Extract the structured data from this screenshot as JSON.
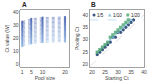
{
  "chart_data": [
    {
      "type": "line",
      "title": "A",
      "xlabel": "Pool size",
      "ylabel": "Ct value (W)",
      "x": [
        1,
        5,
        10,
        20
      ],
      "xlim": [
        0,
        22
      ],
      "xticks": [
        1,
        5,
        10,
        20
      ],
      "ylim": [
        -2,
        42
      ],
      "yticks": [
        0,
        10,
        20,
        30,
        40
      ],
      "grid": false,
      "marker": "circle",
      "line_style": "dotted",
      "series": [
        {
          "color": "#8cb2e0",
          "values": [
            14,
            16.2,
            17.1,
            17.6
          ]
        },
        {
          "color": "#88aede",
          "values": [
            15,
            17.2,
            18.1,
            18.6
          ]
        },
        {
          "color": "#85aadb",
          "values": [
            16,
            18.2,
            19.1,
            19.6
          ]
        },
        {
          "color": "#81a5d9",
          "values": [
            17,
            19.2,
            20.1,
            20.6
          ]
        },
        {
          "color": "#7da1d6",
          "values": [
            18,
            20.2,
            21.1,
            21.6
          ]
        },
        {
          "color": "#799cd4",
          "values": [
            19,
            21.2,
            22.1,
            22.6
          ]
        },
        {
          "color": "#7598d1",
          "values": [
            20,
            22.2,
            23.1,
            23.6
          ]
        },
        {
          "color": "#7193cf",
          "values": [
            21,
            23.2,
            24.1,
            24.6
          ]
        },
        {
          "color": "#6e8fcc",
          "values": [
            22,
            24.2,
            25.1,
            25.6
          ]
        },
        {
          "color": "#6a8ac9",
          "values": [
            23,
            25.2,
            26.1,
            26.6
          ]
        },
        {
          "color": "#6686c7",
          "values": [
            24,
            26.2,
            27.1,
            27.6
          ]
        },
        {
          "color": "#6281c4",
          "values": [
            25,
            27.2,
            28.1,
            28.6
          ]
        },
        {
          "color": "#5e7dc2",
          "values": [
            26,
            28.2,
            29.1,
            29.6
          ]
        },
        {
          "color": "#5b78bf",
          "values": [
            27,
            29.2,
            30.1,
            30.6
          ]
        },
        {
          "color": "#5774bd",
          "values": [
            28,
            30.2,
            31.1,
            31.6
          ]
        },
        {
          "color": "#5370ba",
          "values": [
            29,
            31.2,
            32.1,
            32.6
          ]
        },
        {
          "color": "#4f6bb8",
          "values": [
            30,
            32.2,
            33.1,
            33.6
          ]
        },
        {
          "color": "#4b67b5",
          "values": [
            31,
            33.2,
            34.1,
            34.6
          ]
        },
        {
          "color": "#4762b2",
          "values": [
            32,
            34.2,
            35.1,
            35.6
          ]
        },
        {
          "color": "#445eb0",
          "values": [
            33,
            35.2,
            36.1,
            36.6
          ]
        }
      ]
    },
    {
      "type": "scatter",
      "title": "B",
      "xlabel": "Starting Ct",
      "ylabel": "Pooling Ct",
      "xlim": [
        19,
        40
      ],
      "xticks": [
        20,
        25,
        30,
        35,
        40
      ],
      "ylim": [
        19,
        42
      ],
      "yticks": [
        20,
        25,
        30,
        35,
        40
      ],
      "grid": false,
      "legend": "upper left",
      "reference_lines": [
        {
          "x": [
            19,
            41
          ],
          "y": [
            19,
            41
          ],
          "color": "#bbbbbb",
          "line_style": "dashed"
        },
        {
          "y": 38,
          "color": "#99ccee",
          "line_style": "dashed"
        }
      ],
      "series": [
        {
          "name": "1/5",
          "color": "#1a3a6a",
          "marker": "circle",
          "x": [
            22,
            23,
            24,
            25,
            26,
            27,
            28,
            29,
            30,
            31,
            32,
            33,
            34,
            35,
            36
          ],
          "values": [
            24,
            25,
            26,
            27,
            28,
            29,
            31,
            31,
            33,
            33,
            34,
            35,
            36,
            37,
            38
          ]
        },
        {
          "name": "1/10",
          "color": "#7bbcdb",
          "marker": "triangle",
          "x": [
            22,
            23,
            24,
            25,
            26,
            27,
            28,
            29,
            30,
            31,
            32,
            33,
            34,
            35
          ],
          "values": [
            25,
            26,
            27,
            28,
            29,
            30,
            31,
            32,
            33,
            34,
            35,
            36,
            37,
            38
          ]
        },
        {
          "name": "1/20",
          "color": "#55aa77",
          "marker": "square",
          "x": [
            22,
            23,
            24,
            25,
            26,
            27,
            28,
            29,
            30,
            31,
            32,
            33,
            34
          ],
          "values": [
            25,
            26,
            27,
            28,
            29,
            31,
            32,
            33,
            34,
            35,
            36,
            37,
            38
          ]
        }
      ]
    }
  ]
}
